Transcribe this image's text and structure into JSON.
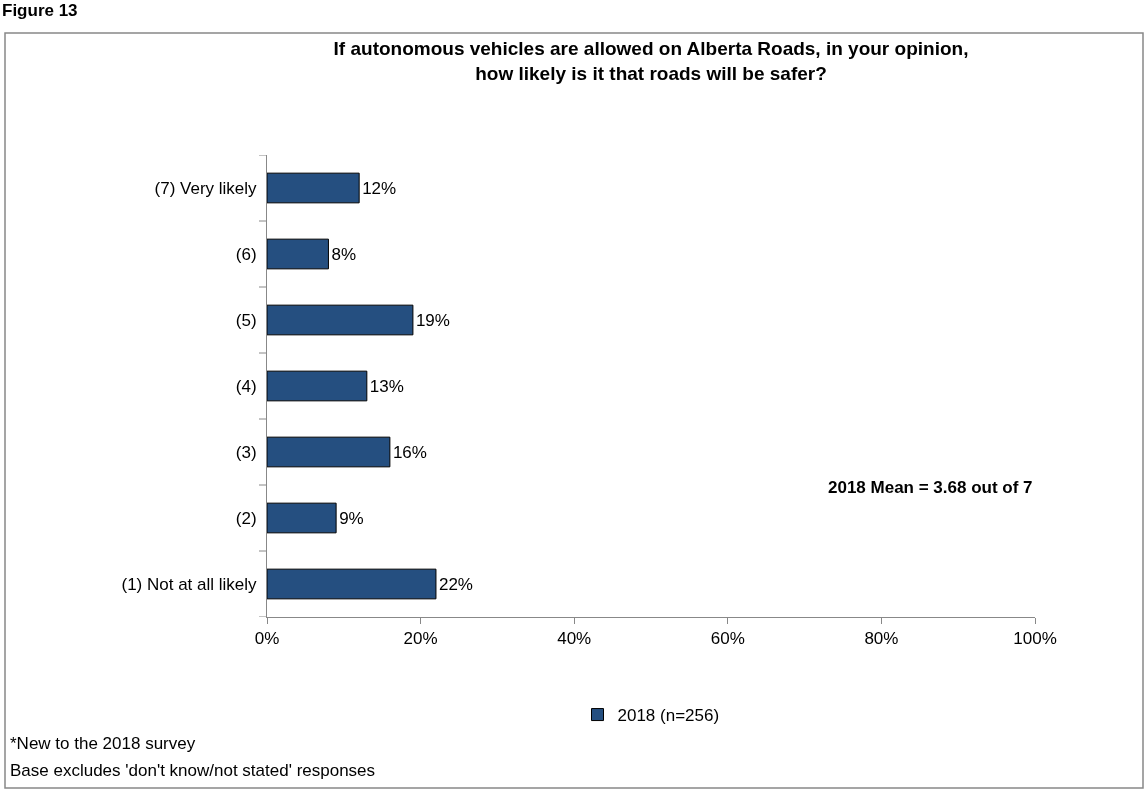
{
  "chart_data": {
    "type": "bar",
    "orientation": "horizontal",
    "title": "If autonomous vehicles are allowed on Alberta Roads, in your opinion,\nhow likely is it that roads will be safer?",
    "categories": [
      "(7) Very likely",
      "(6)",
      "(5)",
      "(4)",
      "(3)",
      "(2)",
      "(1) Not at all likely"
    ],
    "series": [
      {
        "name": "2018 (n=256)",
        "color": "#254f80",
        "values": [
          12,
          8,
          19,
          13,
          16,
          9,
          22
        ],
        "value_labels": [
          "12%",
          "8%",
          "19%",
          "13%",
          "16%",
          "9%",
          "22%"
        ]
      }
    ],
    "xlim": [
      0,
      100
    ],
    "xticks": [
      {
        "value": 0,
        "label": "0%"
      },
      {
        "value": 20,
        "label": "20%"
      },
      {
        "value": 40,
        "label": "40%"
      },
      {
        "value": 60,
        "label": "60%"
      },
      {
        "value": 80,
        "label": "80%"
      },
      {
        "value": 100,
        "label": "100%"
      }
    ],
    "grid": false,
    "legend": "bottom",
    "annotations": [
      "Figure 13",
      "2018 Mean = 3.68 out of 7",
      "*New to the 2018 survey",
      "Base excludes 'don't know/not stated' responses"
    ]
  }
}
